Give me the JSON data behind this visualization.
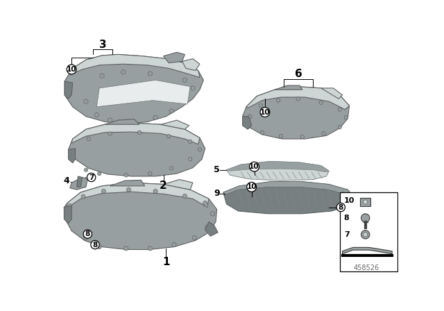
{
  "bg_color": "#ffffff",
  "part_color": "#b0b8b8",
  "part_color_mid": "#989fa0",
  "part_color_dark": "#787f80",
  "part_color_light": "#cdd5d5",
  "fig_number": "458526"
}
